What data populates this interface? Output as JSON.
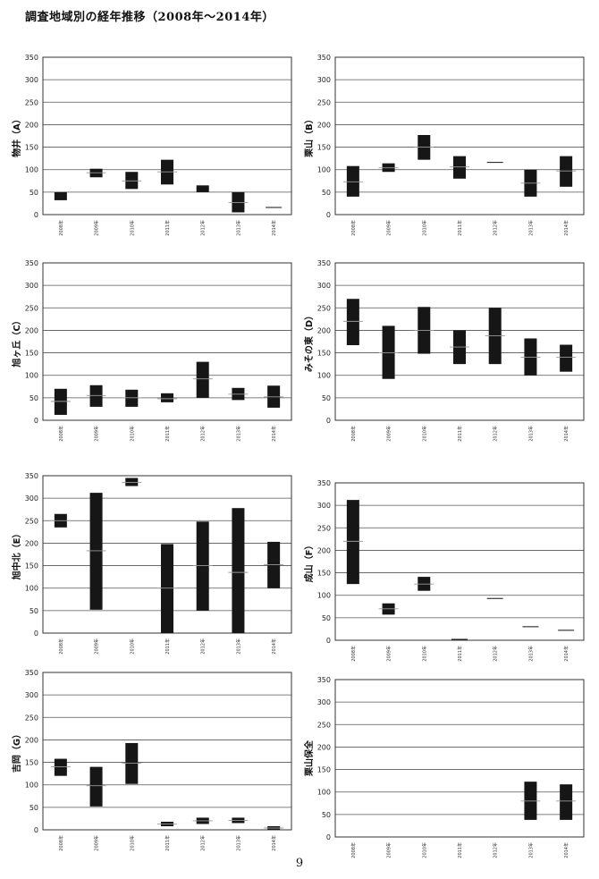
{
  "page": {
    "title": "調査地域別の経年推移（2008年～2014年）",
    "page_number": "9"
  },
  "chart_data": [
    {
      "type": "bar",
      "subtype": "floating-range",
      "ylabel": "物井（A）",
      "ylim": [
        0,
        350
      ],
      "yticks": [
        0,
        50,
        100,
        150,
        200,
        250,
        300,
        350
      ],
      "categories": [
        "2008年",
        "2009年",
        "2010年",
        "2011年",
        "2012年",
        "2013年",
        "2014年"
      ],
      "ranges": [
        [
          32,
          50
        ],
        [
          83,
          102
        ],
        [
          57,
          95
        ],
        [
          67,
          122
        ],
        [
          50,
          65
        ],
        [
          5,
          50
        ],
        [
          16,
          16
        ]
      ],
      "means": [
        null,
        93,
        75,
        95,
        null,
        27,
        16
      ],
      "grid": true
    },
    {
      "type": "bar",
      "subtype": "floating-range",
      "ylabel": "栗山（B）",
      "ylim": [
        0,
        350
      ],
      "yticks": [
        0,
        50,
        100,
        150,
        200,
        250,
        300,
        350
      ],
      "categories": [
        "2008年",
        "2009年",
        "2010年",
        "2011年",
        "2012年",
        "2013年",
        "2014年"
      ],
      "ranges": [
        [
          40,
          108
        ],
        [
          95,
          114
        ],
        [
          122,
          177
        ],
        [
          80,
          130
        ],
        [
          116,
          116
        ],
        [
          40,
          100
        ],
        [
          62,
          130
        ]
      ],
      "means": [
        73,
        104,
        150,
        106,
        116,
        70,
        97
      ],
      "grid": true
    },
    {
      "type": "bar",
      "subtype": "floating-range",
      "ylabel": "旭ヶ丘（C）",
      "ylim": [
        0,
        350
      ],
      "yticks": [
        0,
        50,
        100,
        150,
        200,
        250,
        300,
        350
      ],
      "categories": [
        "2008年",
        "2009年",
        "2010年",
        "2011年",
        "2012年",
        "2013年",
        "2014年"
      ],
      "ranges": [
        [
          12,
          70
        ],
        [
          30,
          78
        ],
        [
          30,
          68
        ],
        [
          40,
          60
        ],
        [
          50,
          130
        ],
        [
          45,
          72
        ],
        [
          28,
          77
        ]
      ],
      "means": [
        42,
        55,
        50,
        48,
        92,
        58,
        52
      ],
      "grid": true
    },
    {
      "type": "bar",
      "subtype": "floating-range",
      "ylabel": "みその東（D）",
      "ylim": [
        0,
        350
      ],
      "yticks": [
        0,
        50,
        100,
        150,
        200,
        250,
        300,
        350
      ],
      "categories": [
        "2008年",
        "2009年",
        "2010年",
        "2011年",
        "2012年",
        "2013年",
        "2014年"
      ],
      "ranges": [
        [
          167,
          270
        ],
        [
          92,
          210
        ],
        [
          148,
          252
        ],
        [
          125,
          200
        ],
        [
          125,
          250
        ],
        [
          100,
          182
        ],
        [
          108,
          168
        ]
      ],
      "means": [
        220,
        150,
        200,
        163,
        188,
        140,
        140
      ],
      "grid": true
    },
    {
      "type": "bar",
      "subtype": "floating-range",
      "ylabel": "旭中北（E）",
      "ylim": [
        0,
        350
      ],
      "yticks": [
        0,
        50,
        100,
        150,
        200,
        250,
        300,
        350
      ],
      "categories": [
        "2008年",
        "2009年",
        "2010年",
        "2011年",
        "2012年",
        "2013年",
        "2014年"
      ],
      "ranges": [
        [
          235,
          265
        ],
        [
          52,
          312
        ],
        [
          327,
          345
        ],
        [
          0,
          198
        ],
        [
          50,
          248
        ],
        [
          0,
          278
        ],
        [
          100,
          203
        ]
      ],
      "means": [
        250,
        183,
        335,
        100,
        150,
        135,
        152
      ],
      "grid": true
    },
    {
      "type": "bar",
      "subtype": "floating-range",
      "ylabel": "成山（F）",
      "ylim": [
        0,
        350
      ],
      "yticks": [
        0,
        50,
        100,
        150,
        200,
        250,
        300,
        350
      ],
      "categories": [
        "2008年",
        "2009年",
        "2010年",
        "2011年",
        "2012年",
        "2013年",
        "2014年"
      ],
      "ranges": [
        [
          125,
          312
        ],
        [
          57,
          82
        ],
        [
          110,
          141
        ],
        [
          2,
          2
        ],
        [
          93,
          93
        ],
        [
          30,
          30
        ],
        [
          22,
          22
        ]
      ],
      "means": [
        220,
        70,
        125,
        2,
        93,
        30,
        22
      ],
      "grid": true
    },
    {
      "type": "bar",
      "subtype": "floating-range",
      "ylabel": "吉岡（G）",
      "ylim": [
        0,
        350
      ],
      "yticks": [
        0,
        50,
        100,
        150,
        200,
        250,
        300,
        350
      ],
      "categories": [
        "2008年",
        "2009年",
        "2010年",
        "2011年",
        "2012年",
        "2013年",
        "2014年"
      ],
      "ranges": [
        [
          120,
          158
        ],
        [
          52,
          140
        ],
        [
          102,
          193
        ],
        [
          8,
          18
        ],
        [
          13,
          27
        ],
        [
          15,
          27
        ],
        [
          0,
          8
        ]
      ],
      "means": [
        140,
        98,
        148,
        13,
        20,
        21,
        4
      ],
      "grid": true
    },
    {
      "type": "bar",
      "subtype": "floating-range",
      "ylabel": "栗山保全",
      "ylim": [
        0,
        350
      ],
      "yticks": [
        0,
        50,
        100,
        150,
        200,
        250,
        300,
        350
      ],
      "categories": [
        "2008年",
        "2009年",
        "2010年",
        "2011年",
        "2012年",
        "2013年",
        "2014年"
      ],
      "ranges": [
        null,
        null,
        null,
        null,
        null,
        [
          38,
          123
        ],
        [
          38,
          117
        ]
      ],
      "means": [
        null,
        null,
        null,
        null,
        null,
        80,
        80
      ],
      "grid": true
    }
  ]
}
